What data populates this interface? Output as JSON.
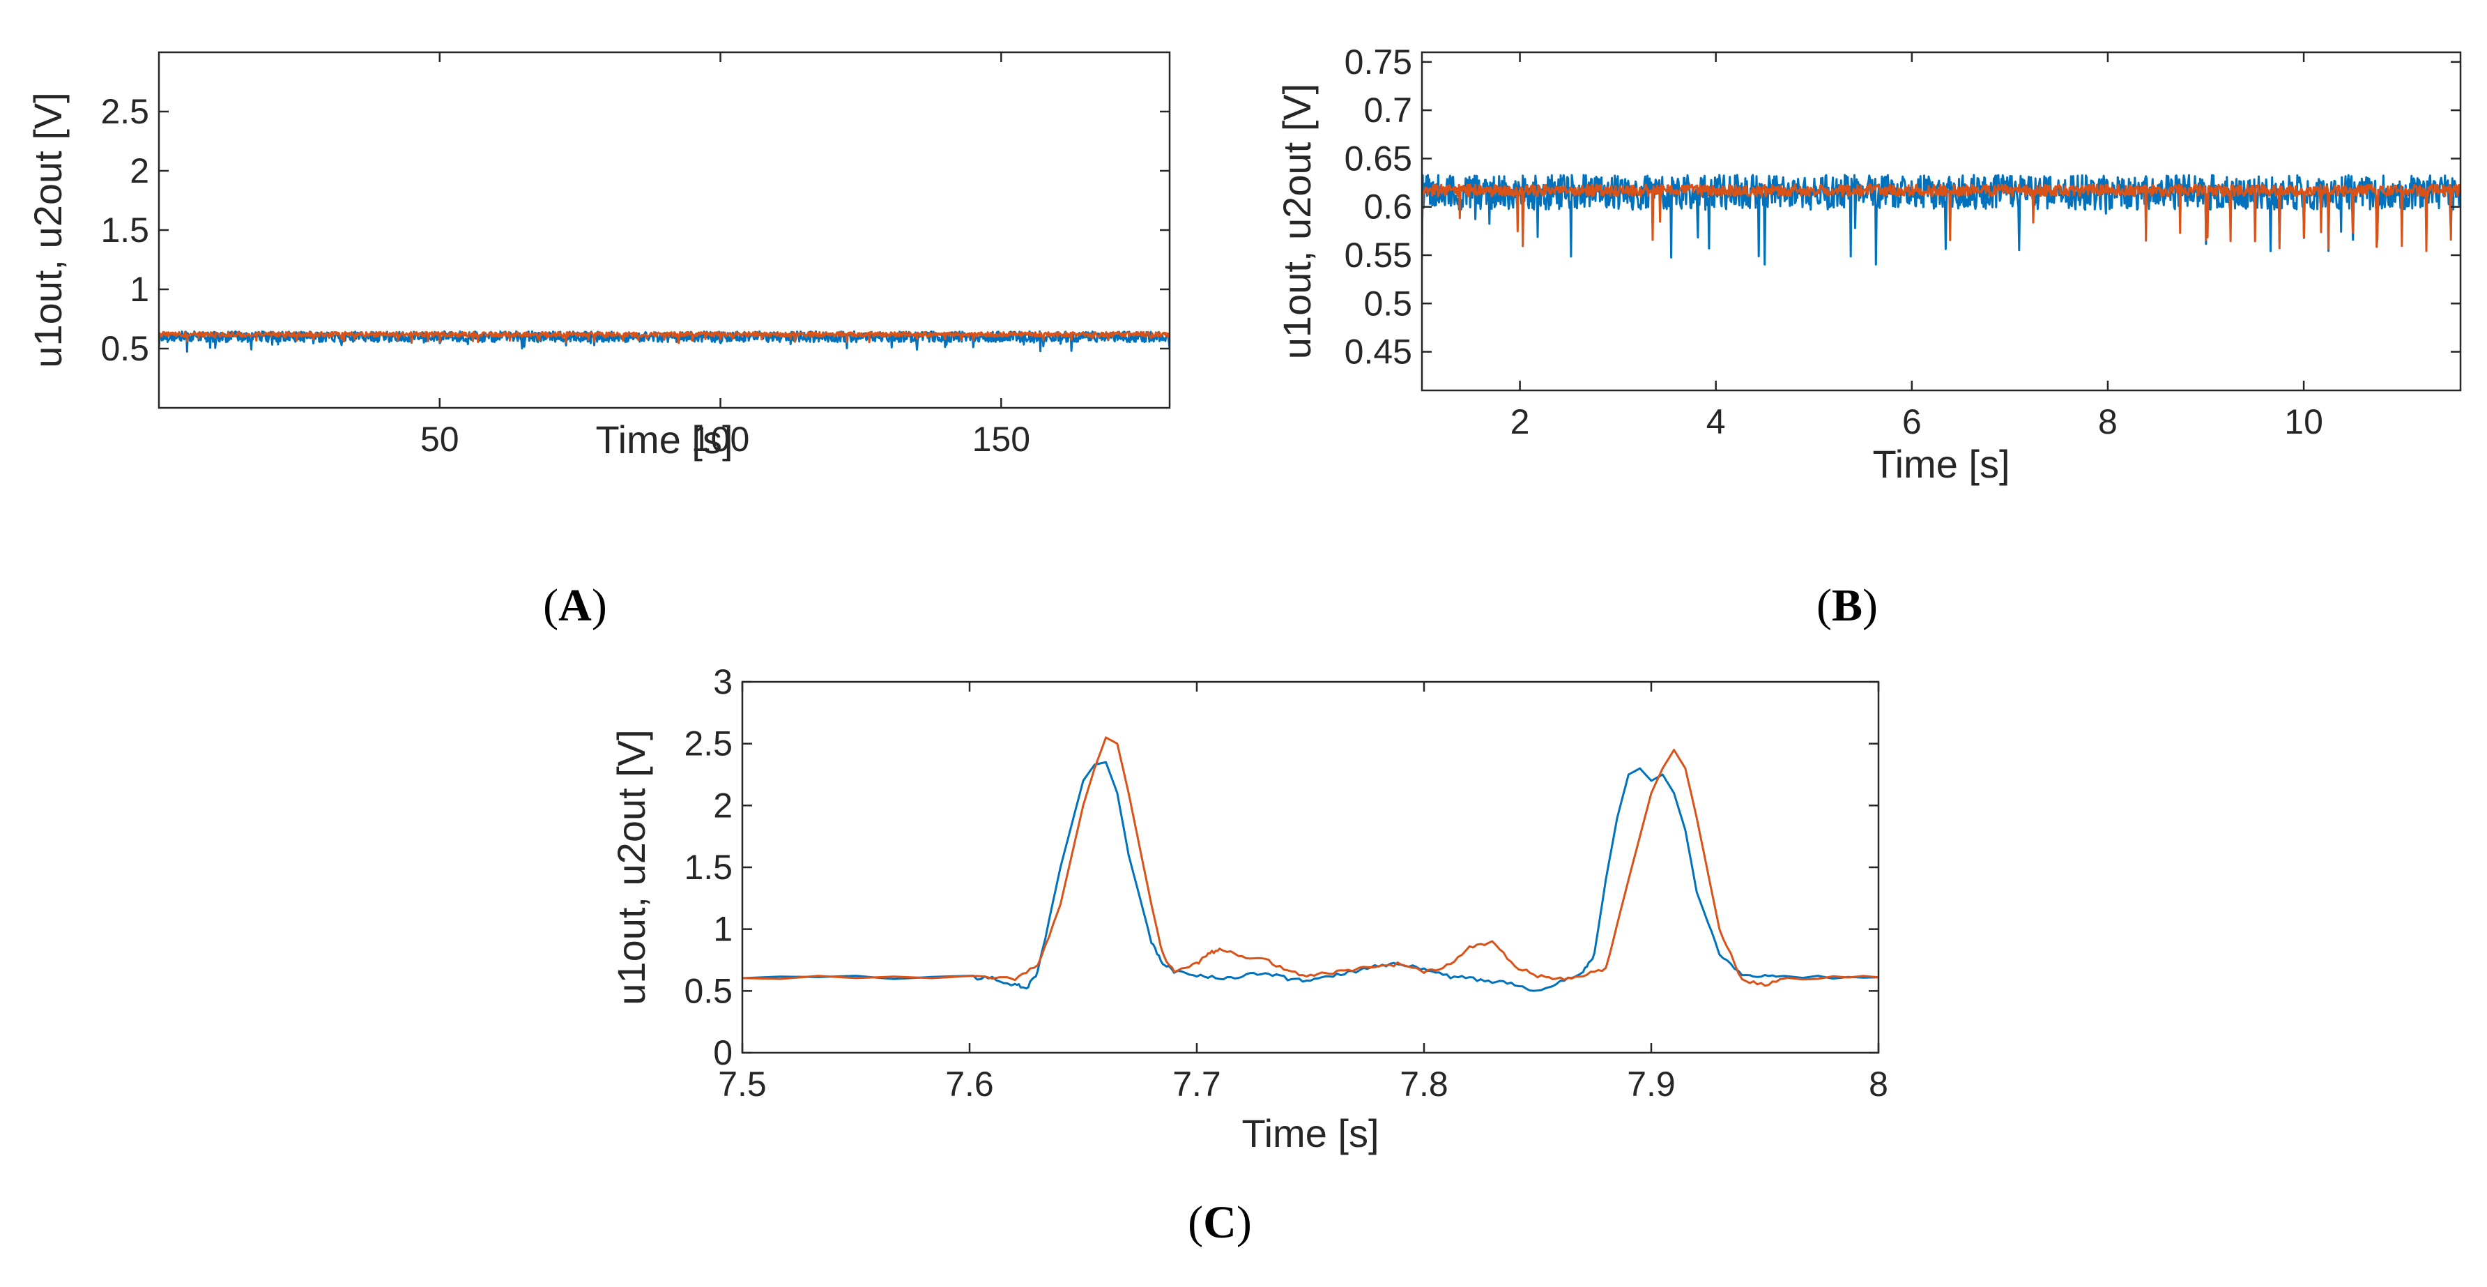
{
  "colors": {
    "u1out": "#0072BD",
    "u2out": "#D95319",
    "axis": "#262626"
  },
  "chart_data": [
    {
      "id": "A",
      "type": "line",
      "panel_label": "A",
      "xlabel": "Time [s]",
      "ylabel": "u1out, u2out [V]",
      "xlim": [
        0,
        180
      ],
      "ylim": [
        0,
        3
      ],
      "xticks": [
        50,
        100,
        150
      ],
      "yticks": [
        0.5,
        1,
        1.5,
        2,
        2.5
      ],
      "series": [
        {
          "name": "u1out",
          "color": "#0072BD",
          "baseline": 0.6,
          "noise": 0.045,
          "spike_period": 2.5,
          "spike_depth": 0.07
        },
        {
          "name": "u2out",
          "color": "#D95319",
          "baseline": 0.62,
          "noise": 0.02,
          "spike_period": 2.5,
          "spike_depth": 0.05
        }
      ]
    },
    {
      "id": "B",
      "type": "line",
      "panel_label": "B",
      "xlabel": "Time [s]",
      "ylabel": "u1out, u2out [V]",
      "xlim": [
        1,
        11.6
      ],
      "ylim": [
        0.41,
        0.76
      ],
      "xticks": [
        2,
        4,
        6,
        8,
        10
      ],
      "yticks": [
        0.45,
        0.5,
        0.55,
        0.6,
        0.65,
        0.7,
        0.75
      ],
      "series": [
        {
          "name": "u1out",
          "color": "#0072BD",
          "baseline": 0.615,
          "noise": 0.018,
          "spike_period": 0.25,
          "spike_depth": 0.055
        },
        {
          "name": "u2out",
          "color": "#D95319",
          "baseline": 0.617,
          "noise": 0.006,
          "spike_period": 0.25,
          "spike_depth": 0.055
        }
      ]
    },
    {
      "id": "C",
      "type": "line",
      "panel_label": "C",
      "xlabel": "Time [s]",
      "ylabel": "u1out, u2out [V]",
      "xlim": [
        7.5,
        8
      ],
      "ylim": [
        0,
        3
      ],
      "xticks": [
        7.5,
        7.6,
        7.7,
        7.8,
        7.9,
        8
      ],
      "yticks": [
        0,
        0.5,
        1,
        1.5,
        2,
        2.5,
        3
      ],
      "series": [
        {
          "name": "u1out",
          "color": "#0072BD",
          "x": [
            7.5,
            7.6,
            7.61,
            7.62,
            7.625,
            7.63,
            7.64,
            7.65,
            7.655,
            7.66,
            7.665,
            7.67,
            7.68,
            7.685,
            7.69,
            7.7,
            7.71,
            7.72,
            7.73,
            7.74,
            7.75,
            7.76,
            7.77,
            7.78,
            7.79,
            7.8,
            7.81,
            7.82,
            7.83,
            7.84,
            7.85,
            7.86,
            7.87,
            7.875,
            7.88,
            7.885,
            7.89,
            7.895,
            7.9,
            7.905,
            7.91,
            7.915,
            7.92,
            7.93,
            7.94,
            7.95,
            7.96,
            8.0
          ],
          "y": [
            0.61,
            0.61,
            0.6,
            0.55,
            0.52,
            0.65,
            1.5,
            2.2,
            2.33,
            2.35,
            2.1,
            1.6,
            0.9,
            0.72,
            0.66,
            0.63,
            0.6,
            0.62,
            0.65,
            0.6,
            0.58,
            0.62,
            0.66,
            0.7,
            0.72,
            0.68,
            0.62,
            0.6,
            0.58,
            0.55,
            0.5,
            0.58,
            0.65,
            0.8,
            1.4,
            1.9,
            2.25,
            2.3,
            2.2,
            2.25,
            2.1,
            1.8,
            1.3,
            0.8,
            0.64,
            0.62,
            0.61,
            0.61
          ]
        },
        {
          "name": "u2out",
          "color": "#D95319",
          "x": [
            7.5,
            7.6,
            7.62,
            7.63,
            7.64,
            7.65,
            7.655,
            7.66,
            7.665,
            7.67,
            7.68,
            7.685,
            7.69,
            7.7,
            7.705,
            7.71,
            7.72,
            7.73,
            7.74,
            7.75,
            7.76,
            7.77,
            7.78,
            7.79,
            7.8,
            7.81,
            7.82,
            7.83,
            7.84,
            7.85,
            7.86,
            7.87,
            7.88,
            7.89,
            7.9,
            7.905,
            7.91,
            7.915,
            7.92,
            7.93,
            7.94,
            7.95,
            7.96,
            8.0
          ],
          "y": [
            0.61,
            0.61,
            0.6,
            0.7,
            1.2,
            2.0,
            2.3,
            2.55,
            2.5,
            2.1,
            1.2,
            0.8,
            0.65,
            0.72,
            0.8,
            0.84,
            0.78,
            0.76,
            0.66,
            0.62,
            0.65,
            0.68,
            0.7,
            0.72,
            0.66,
            0.7,
            0.85,
            0.9,
            0.7,
            0.62,
            0.6,
            0.63,
            0.68,
            1.4,
            2.1,
            2.3,
            2.45,
            2.3,
            1.9,
            1.0,
            0.58,
            0.55,
            0.6,
            0.61
          ]
        }
      ]
    }
  ]
}
